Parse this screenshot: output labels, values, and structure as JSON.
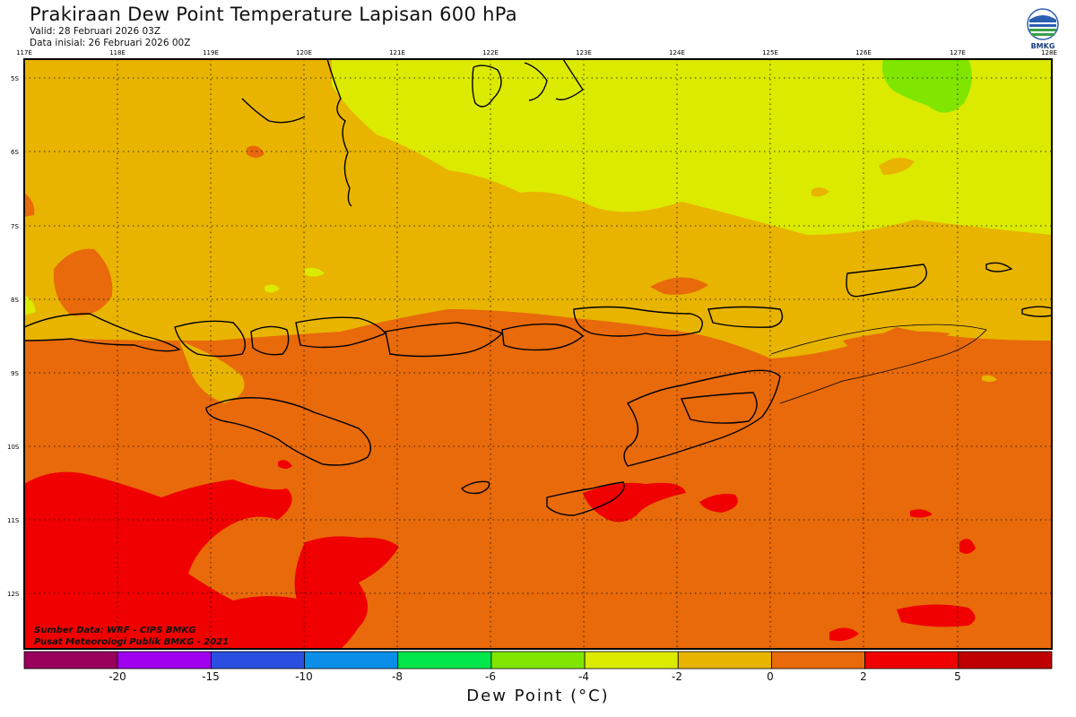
{
  "header": {
    "title": "Prakiraan Dew Point Temperature Lapisan 600 hPa",
    "valid": "Valid: 28 Februari 2026 03Z",
    "initial": "Data inisial: 26 Februari 2026 00Z"
  },
  "logo": {
    "text": "BMKG",
    "icon": "bmkg-logo-icon"
  },
  "axes": {
    "lon": [
      "117E",
      "118E",
      "119E",
      "120E",
      "121E",
      "122E",
      "123E",
      "124E",
      "125E",
      "126E",
      "127E",
      "128E"
    ],
    "lat": [
      "5S",
      "6S",
      "7S",
      "8S",
      "9S",
      "10S",
      "11S",
      "12S"
    ]
  },
  "credits": {
    "source": "Sumber Data: WRF - CIPS BMKG",
    "center": "Pusat Meteorologi Publik BMKG - 2021"
  },
  "colorbar": {
    "title": "Dew Point (°C)",
    "colors": [
      "#99005c",
      "#a100f0",
      "#2a4fe0",
      "#0a8ee8",
      "#00e64b",
      "#80e600",
      "#dcea00",
      "#e8b400",
      "#e86a0a",
      "#f00000",
      "#bf0000"
    ],
    "labels": [
      "-20",
      "-15",
      "-10",
      "-8",
      "-6",
      "-4",
      "-2",
      "0",
      "2",
      "5"
    ]
  },
  "field_colors": {
    "green": "#80e600",
    "yellow": "#dcea00",
    "gold": "#e8b400",
    "orange": "#e86a0a",
    "red": "#f00000"
  }
}
